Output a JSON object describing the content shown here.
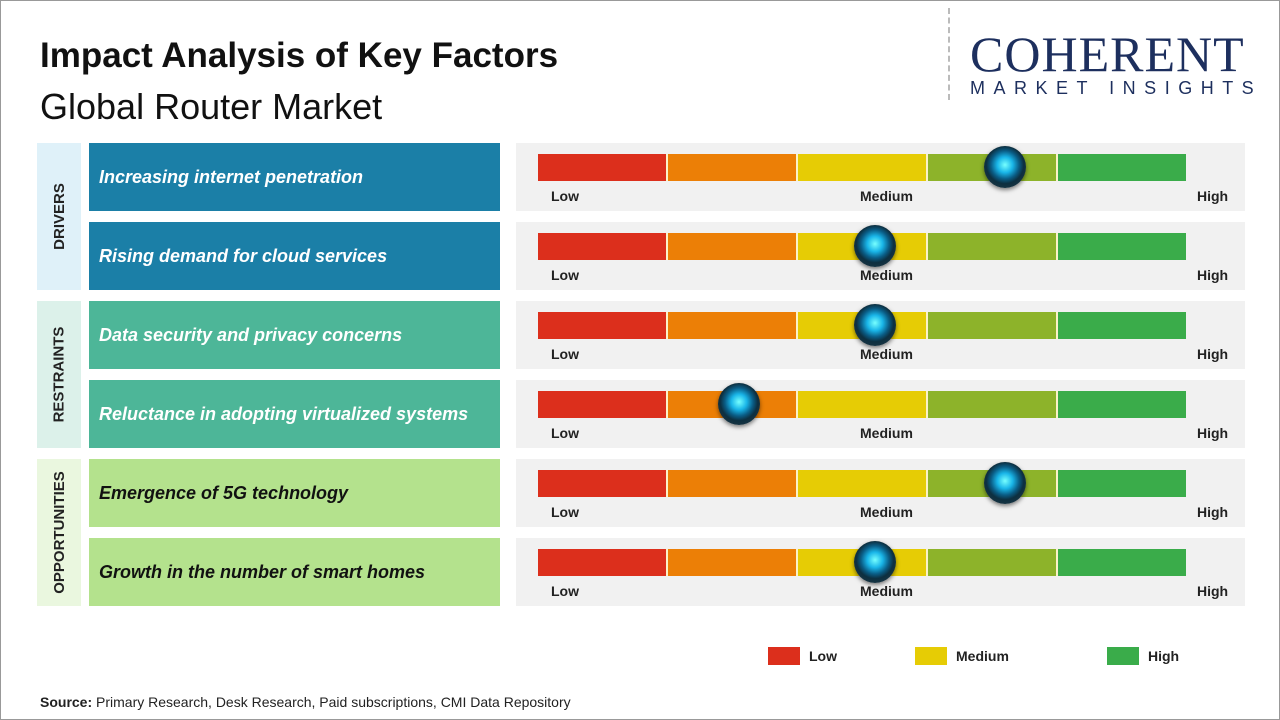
{
  "title": "Impact Analysis of Key Factors",
  "subtitle": "Global Router Market",
  "logo": {
    "name": "COHERENT",
    "tagline": "MARKET INSIGHTS"
  },
  "colors": {
    "drivers": "#1b7fa7",
    "restraints": "#4db698",
    "opportunities": "#b4e28d",
    "scale": [
      "#dc2f1c",
      "#ec7f06",
      "#e6cc05",
      "#8db32a",
      "#3aac4a"
    ]
  },
  "chart_data": {
    "type": "gauge",
    "scale_labels": {
      "low": "Low",
      "medium": "Medium",
      "high": "High"
    },
    "categories": [
      {
        "name": "DRIVERS",
        "factors": [
          {
            "label": "Increasing internet penetration",
            "impact": 0.72
          },
          {
            "label": "Rising demand for cloud services",
            "impact": 0.52
          }
        ]
      },
      {
        "name": "RESTRAINTS",
        "factors": [
          {
            "label": "Data security and privacy concerns",
            "impact": 0.52
          },
          {
            "label": "Reluctance in adopting virtualized systems",
            "impact": 0.31
          }
        ]
      },
      {
        "name": "OPPORTUNITIES",
        "factors": [
          {
            "label": "Emergence of 5G technology",
            "impact": 0.72
          },
          {
            "label": "Growth in the number of smart homes",
            "impact": 0.52
          }
        ]
      }
    ],
    "legend": [
      {
        "label": "Low",
        "color": "#dc2f1c"
      },
      {
        "label": "Medium",
        "color": "#e6cc05"
      },
      {
        "label": "High",
        "color": "#3aac4a"
      }
    ]
  },
  "source": {
    "label": "Source:",
    "text": " Primary Research, Desk Research, Paid subscriptions, CMI Data Repository"
  }
}
